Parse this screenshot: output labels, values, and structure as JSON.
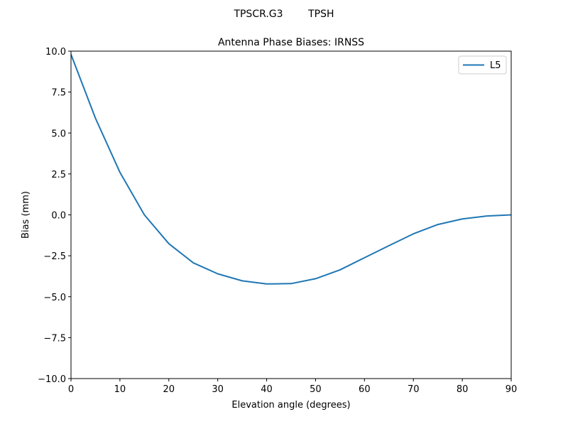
{
  "suptitle": "TPSCR.G3        TPSH",
  "chart_data": {
    "type": "line",
    "title": "Antenna Phase Biases: IRNSS",
    "xlabel": "Elevation angle (degrees)",
    "ylabel": "Bias (mm)",
    "xlim": [
      0,
      90
    ],
    "ylim": [
      -10,
      10
    ],
    "xticks": [
      "0",
      "10",
      "20",
      "30",
      "40",
      "50",
      "60",
      "70",
      "80",
      "90"
    ],
    "yticks": [
      "−10.0",
      "−7.5",
      "−5.0",
      "−2.5",
      "0.0",
      "2.5",
      "5.0",
      "7.5",
      "10.0"
    ],
    "grid": false,
    "legend_position": "top-right",
    "x": [
      0,
      5,
      10,
      15,
      20,
      25,
      30,
      35,
      40,
      45,
      50,
      55,
      60,
      65,
      70,
      75,
      80,
      85,
      90
    ],
    "series": [
      {
        "name": "L5",
        "color": "#1f77b4",
        "values": [
          9.8,
          5.9,
          2.6,
          0.0,
          -1.76,
          -2.93,
          -3.6,
          -4.03,
          -4.22,
          -4.2,
          -3.9,
          -3.36,
          -2.62,
          -1.88,
          -1.16,
          -0.59,
          -0.25,
          -0.07,
          0.0
        ]
      }
    ]
  }
}
